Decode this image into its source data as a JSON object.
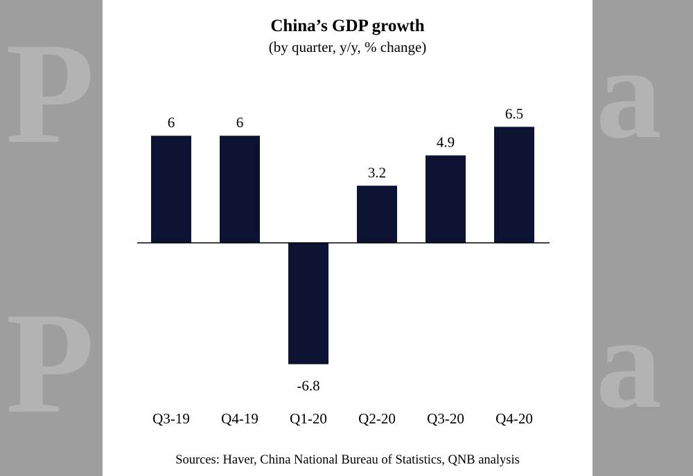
{
  "watermark": {
    "letters": [
      "P",
      "a",
      "P",
      "a"
    ],
    "color": "#b3b3b3"
  },
  "chart_data": {
    "type": "bar",
    "title": "China’s GDP growth",
    "subtitle": "(by quarter, y/y, % change)",
    "categories": [
      "Q3-19",
      "Q4-19",
      "Q1-20",
      "Q2-20",
      "Q3-20",
      "Q4-20"
    ],
    "values": [
      6,
      6,
      -6.8,
      3.2,
      4.9,
      6.5
    ],
    "value_labels": [
      "6",
      "6",
      "-6.8",
      "3.2",
      "4.9",
      "6.5"
    ],
    "ylim": [
      -6.8,
      6.5
    ],
    "grid": false,
    "legend": "none",
    "bar_color": "#0b1232",
    "xlabel": "",
    "ylabel": "",
    "source": "Sources: Haver, China National Bureau of Statistics, QNB analysis"
  }
}
